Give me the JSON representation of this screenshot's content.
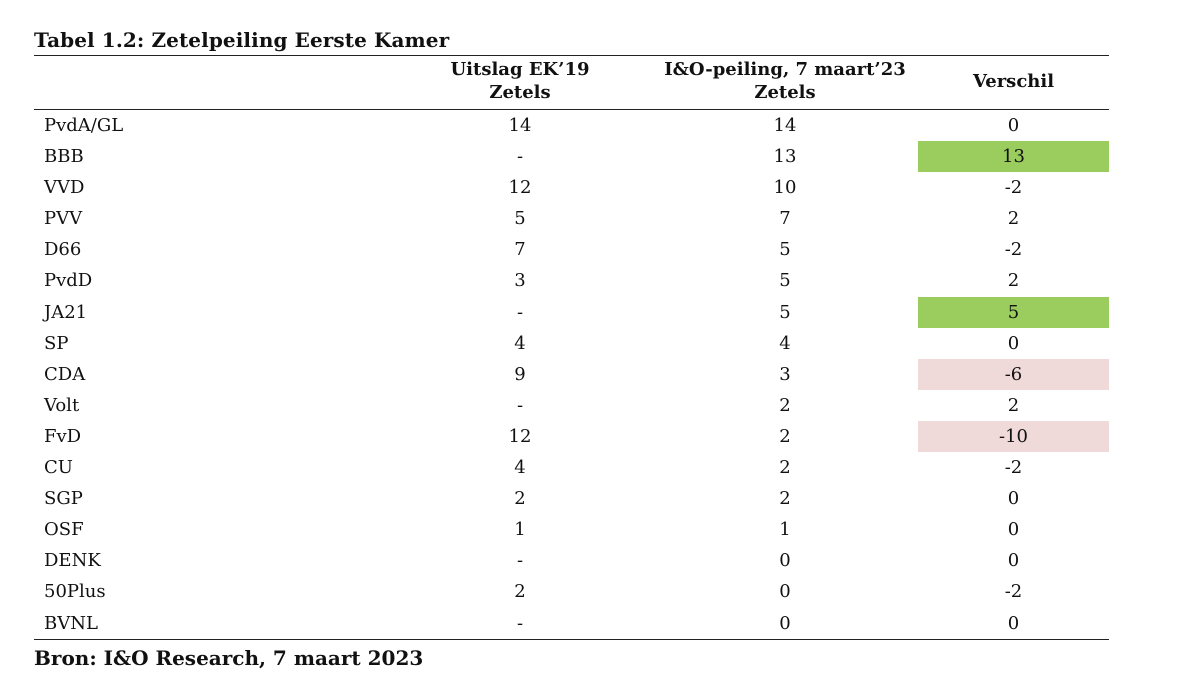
{
  "title": "Tabel 1.2: Zetelpeiling Eerste Kamer",
  "columns": {
    "ek19": [
      "Uitslag EK’19",
      "Zetels"
    ],
    "peiling": [
      "I&O-peiling, 7 maart’23",
      "Zetels"
    ],
    "verschil": "Verschil"
  },
  "rows": [
    {
      "party": "PvdA/GL",
      "ek19": "14",
      "peiling": "14",
      "verschil": "0",
      "highlight": ""
    },
    {
      "party": "BBB",
      "ek19": "-",
      "peiling": "13",
      "verschil": "13",
      "highlight": "pos"
    },
    {
      "party": "VVD",
      "ek19": "12",
      "peiling": "10",
      "verschil": "-2",
      "highlight": ""
    },
    {
      "party": "PVV",
      "ek19": "5",
      "peiling": "7",
      "verschil": "2",
      "highlight": ""
    },
    {
      "party": "D66",
      "ek19": "7",
      "peiling": "5",
      "verschil": "-2",
      "highlight": ""
    },
    {
      "party": "PvdD",
      "ek19": "3",
      "peiling": "5",
      "verschil": "2",
      "highlight": ""
    },
    {
      "party": "JA21",
      "ek19": "-",
      "peiling": "5",
      "verschil": "5",
      "highlight": "pos"
    },
    {
      "party": "SP",
      "ek19": "4",
      "peiling": "4",
      "verschil": "0",
      "highlight": ""
    },
    {
      "party": "CDA",
      "ek19": "9",
      "peiling": "3",
      "verschil": "-6",
      "highlight": "neg"
    },
    {
      "party": "Volt",
      "ek19": "-",
      "peiling": "2",
      "verschil": "2",
      "highlight": ""
    },
    {
      "party": "FvD",
      "ek19": "12",
      "peiling": "2",
      "verschil": "-10",
      "highlight": "neg"
    },
    {
      "party": "CU",
      "ek19": "4",
      "peiling": "2",
      "verschil": "-2",
      "highlight": ""
    },
    {
      "party": "SGP",
      "ek19": "2",
      "peiling": "2",
      "verschil": "0",
      "highlight": ""
    },
    {
      "party": "OSF",
      "ek19": "1",
      "peiling": "1",
      "verschil": "0",
      "highlight": ""
    },
    {
      "party": "DENK",
      "ek19": "-",
      "peiling": "0",
      "verschil": "0",
      "highlight": ""
    },
    {
      "party": "50Plus",
      "ek19": "2",
      "peiling": "0",
      "verschil": "-2",
      "highlight": ""
    },
    {
      "party": "BVNL",
      "ek19": "-",
      "peiling": "0",
      "verschil": "0",
      "highlight": ""
    }
  ],
  "source": "Bron: I&O Research, 7 maart 2023",
  "colors": {
    "positive_highlight": "#9acd5e",
    "negative_highlight": "#f0d9d9"
  }
}
